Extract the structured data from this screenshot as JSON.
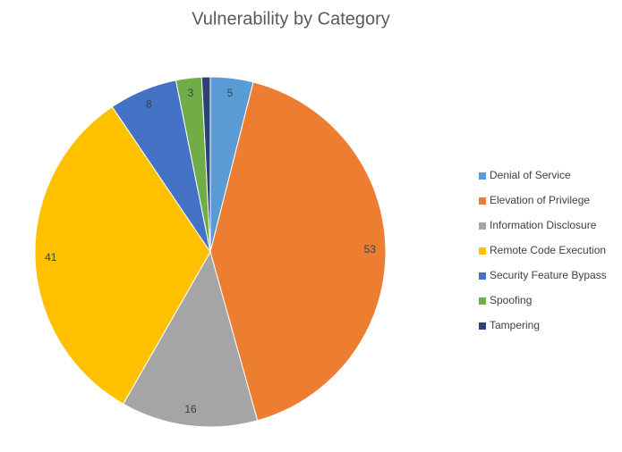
{
  "chart_data": {
    "type": "pie",
    "title": "Vulnerability by Category",
    "categories": [
      "Denial of Service",
      "Elevation of Privilege",
      "Information Disclosure",
      "Remote Code Execution",
      "Security Feature Bypass",
      "Spoofing",
      "Tampering"
    ],
    "values": [
      5,
      53,
      16,
      41,
      8,
      3,
      1
    ],
    "colors": [
      "#5b9bd5",
      "#ed7d31",
      "#a5a5a5",
      "#ffc000",
      "#4472c4",
      "#70ad47",
      "#264478"
    ],
    "legend": "right"
  }
}
